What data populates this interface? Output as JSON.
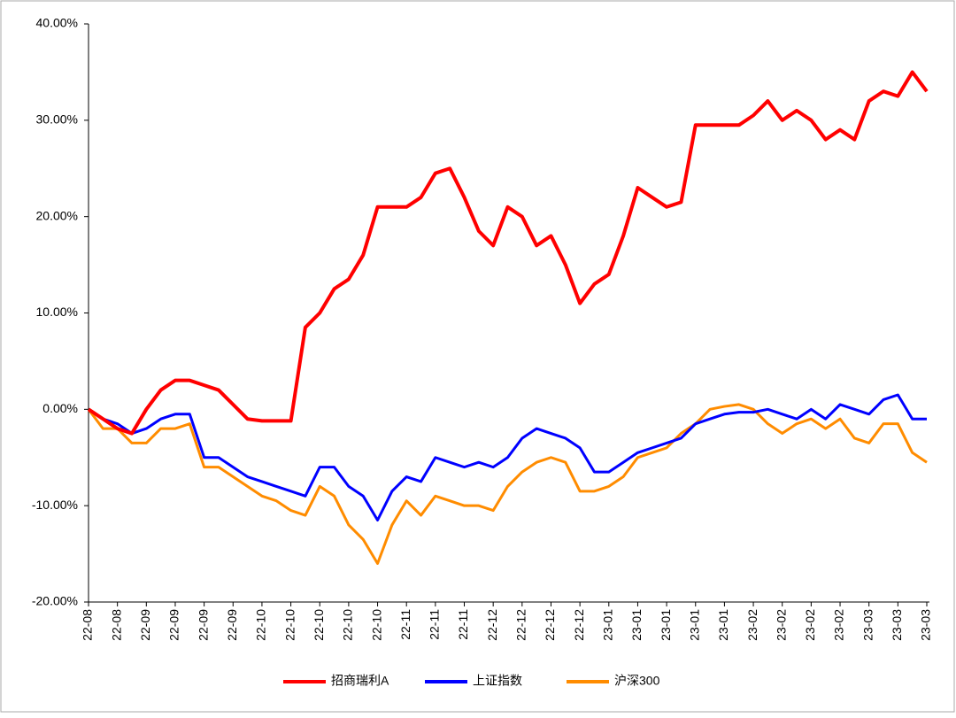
{
  "chart_data": {
    "type": "line",
    "categories": [
      "22-08",
      null,
      "22-08",
      null,
      "22-09",
      null,
      "22-09",
      null,
      "22-09",
      null,
      "22-09",
      null,
      "22-10",
      null,
      "22-10",
      null,
      "22-10",
      null,
      "22-10",
      null,
      "22-10",
      null,
      "22-11",
      null,
      "22-11",
      null,
      "22-11",
      null,
      "22-12",
      null,
      "22-12",
      null,
      "22-12",
      null,
      "22-12",
      null,
      "23-01",
      null,
      "23-01",
      null,
      "23-01",
      null,
      "23-01",
      null,
      "23-01",
      null,
      "23-02",
      null,
      "23-02",
      null,
      "23-02",
      null,
      "23-02",
      null,
      "23-03",
      null,
      "23-03",
      null,
      "23-03"
    ],
    "series": [
      {
        "name": "招商瑞利A",
        "color": "#ff0000",
        "values": [
          0,
          -1,
          -2,
          -2.5,
          0,
          2,
          3,
          3,
          2.5,
          2,
          0.5,
          -1,
          -1.2,
          -1.2,
          -1.2,
          8.5,
          10,
          12.5,
          13.5,
          16,
          21,
          21,
          21,
          22,
          24.5,
          25,
          22,
          18.5,
          17,
          21,
          20,
          17,
          18,
          15,
          11,
          13,
          14,
          18,
          23,
          22,
          21,
          21.5,
          29.5,
          29.5,
          29.5,
          29.5,
          30.5,
          32,
          30,
          31,
          30,
          28,
          29,
          28,
          32,
          33,
          32.5,
          35,
          33
        ]
      },
      {
        "name": "上证指数",
        "color": "#0000ff",
        "values": [
          0,
          -1,
          -1.5,
          -2.5,
          -2,
          -1,
          -0.5,
          -0.5,
          -5,
          -5,
          -6,
          -7,
          -7.5,
          -8,
          -8.5,
          -9,
          -6,
          -6,
          -8,
          -9,
          -11.5,
          -8.5,
          -7,
          -7.5,
          -5,
          -5.5,
          -6,
          -5.5,
          -6,
          -5,
          -3,
          -2,
          -2.5,
          -3,
          -4,
          -6.5,
          -6.5,
          -5.5,
          -4.5,
          -4,
          -3.5,
          -3,
          -1.5,
          -1,
          -0.5,
          -0.3,
          -0.3,
          0,
          -0.5,
          -1,
          0,
          -1,
          0.5,
          0,
          -0.5,
          1,
          1.5,
          -1,
          -1
        ]
      },
      {
        "name": "沪深300",
        "color": "#ff8c00",
        "values": [
          0,
          -2,
          -2,
          -3.5,
          -3.5,
          -2,
          -2,
          -1.5,
          -6,
          -6,
          -7,
          -8,
          -9,
          -9.5,
          -10.5,
          -11,
          -8,
          -9,
          -12,
          -13.5,
          -16,
          -12,
          -9.5,
          -11,
          -9,
          -9.5,
          -10,
          -10,
          -10.5,
          -8,
          -6.5,
          -5.5,
          -5,
          -5.5,
          -8.5,
          -8.5,
          -8,
          -7,
          -5,
          -4.5,
          -4,
          -2.5,
          -1.5,
          0,
          0.3,
          0.5,
          0,
          -1.5,
          -2.5,
          -1.5,
          -1,
          -2,
          -1,
          -3,
          -3.5,
          -1.5,
          -1.5,
          -4.5,
          -5.5
        ]
      }
    ],
    "ylim": [
      -20,
      40
    ],
    "yticks": [
      {
        "value": -20,
        "label": "-20.00%"
      },
      {
        "value": -10,
        "label": "-10.00%"
      },
      {
        "value": 0,
        "label": "0.00%"
      },
      {
        "value": 10,
        "label": "10.00%"
      },
      {
        "value": 20,
        "label": "20.00%"
      },
      {
        "value": 30,
        "label": "30.00%"
      },
      {
        "value": 40,
        "label": "40.00%"
      }
    ],
    "grid": false,
    "legend": "bottom"
  }
}
